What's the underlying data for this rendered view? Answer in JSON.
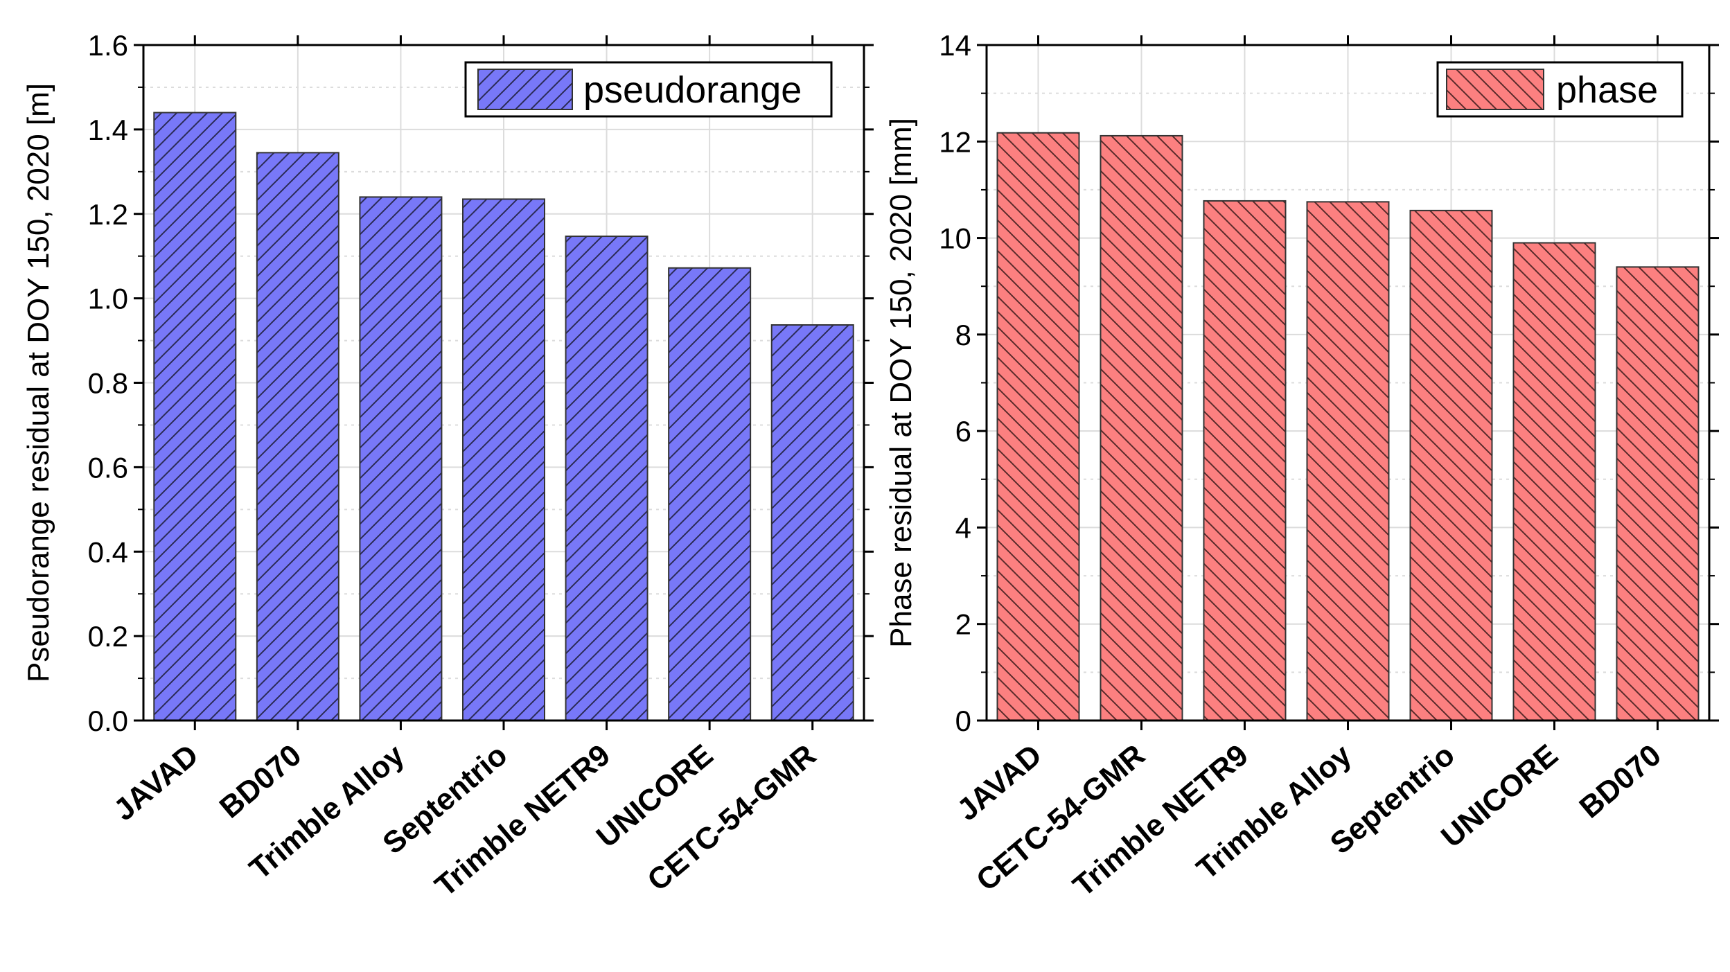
{
  "chart_data": [
    {
      "type": "bar",
      "name": "pseudorange",
      "categories": [
        "JAVAD",
        "BD070",
        "Trimble  Alloy",
        "Septentrio",
        "Trimble NETR9",
        "UNICORE",
        "CETC-54-GMR"
      ],
      "values": [
        1.44,
        1.345,
        1.24,
        1.235,
        1.147,
        1.072,
        0.937
      ],
      "ylabel": "Pseudorange residual at DOY 150, 2020 [m]",
      "xlabel": "",
      "ylim": [
        0,
        1.6
      ],
      "yticks": [
        0.0,
        0.2,
        0.4,
        0.6,
        0.8,
        1.0,
        1.2,
        1.4,
        1.6
      ],
      "ytick_labels": [
        "0.0",
        "0.2",
        "0.4",
        "0.6",
        "0.8",
        "1.0",
        "1.2",
        "1.4",
        "1.6"
      ],
      "legend": "pseudorange",
      "legend_position": "top-right",
      "grid": true,
      "color": "#7878f8",
      "hatch": "forward"
    },
    {
      "type": "bar",
      "name": "phase",
      "categories": [
        "JAVAD",
        "CETC-54-GMR",
        "Trimble NETR9",
        "Trimble Alloy",
        "Septentrio",
        "UNICORE",
        "BD070"
      ],
      "values": [
        12.18,
        12.12,
        10.77,
        10.75,
        10.57,
        9.9,
        9.4
      ],
      "ylabel": "Phase residual at DOY 150, 2020 [mm]",
      "xlabel": "",
      "ylim": [
        0,
        14
      ],
      "yticks": [
        0,
        2,
        4,
        6,
        8,
        10,
        12,
        14
      ],
      "ytick_labels": [
        "0",
        "2",
        "4",
        "6",
        "8",
        "10",
        "12",
        "14"
      ],
      "legend": "phase",
      "legend_position": "top-right",
      "grid": true,
      "color": "#fc8080",
      "hatch": "backward"
    }
  ]
}
